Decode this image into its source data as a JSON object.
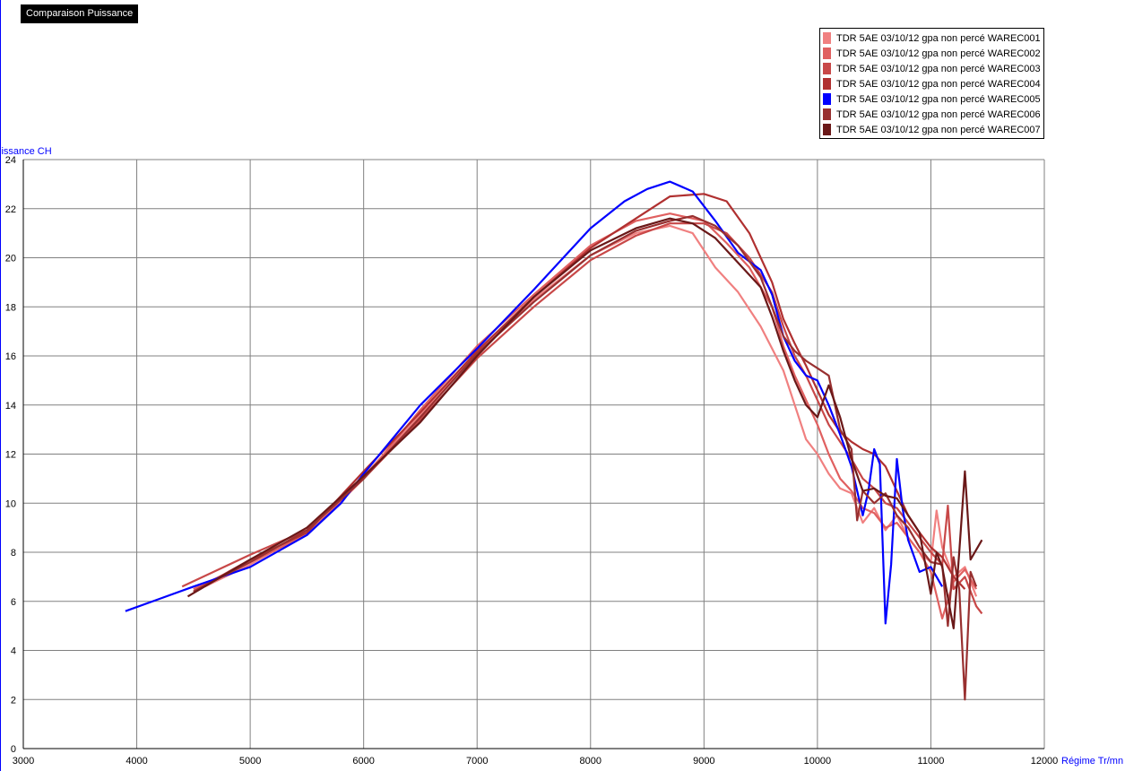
{
  "title": "Comparaison Puissance",
  "chart_data": {
    "type": "line",
    "title": "Comparaison Puissance",
    "xlabel": "Régime Tr/mn",
    "ylabel": "Puissance CH",
    "xlim": [
      3000,
      12000
    ],
    "ylim": [
      0,
      24
    ],
    "xticks": [
      3000,
      4000,
      5000,
      6000,
      7000,
      8000,
      9000,
      10000,
      11000,
      12000
    ],
    "yticks": [
      0,
      2,
      4,
      6,
      8,
      10,
      12,
      14,
      16,
      18,
      20,
      22,
      24
    ],
    "grid": true,
    "legend_position": "top-right",
    "series": [
      {
        "name": "TDR 5AE 03/10/12 gpa non percé WAREC001",
        "color": "#f08080",
        "points": [
          [
            4600,
            6.6
          ],
          [
            5000,
            7.5
          ],
          [
            5500,
            8.8
          ],
          [
            6000,
            11.1
          ],
          [
            6500,
            13.6
          ],
          [
            7000,
            16.1
          ],
          [
            7500,
            18.3
          ],
          [
            8000,
            20.1
          ],
          [
            8400,
            21.0
          ],
          [
            8700,
            21.3
          ],
          [
            8900,
            21.0
          ],
          [
            9100,
            19.6
          ],
          [
            9300,
            18.6
          ],
          [
            9500,
            17.2
          ],
          [
            9700,
            15.4
          ],
          [
            9800,
            14.0
          ],
          [
            9900,
            12.6
          ],
          [
            10000,
            12.0
          ],
          [
            10100,
            11.2
          ],
          [
            10200,
            10.6
          ],
          [
            10300,
            10.4
          ],
          [
            10400,
            9.2
          ],
          [
            10500,
            9.8
          ],
          [
            10600,
            8.9
          ],
          [
            10700,
            9.5
          ],
          [
            10800,
            8.6
          ],
          [
            10900,
            8.0
          ],
          [
            11000,
            7.6
          ],
          [
            11050,
            9.7
          ],
          [
            11100,
            8.2
          ],
          [
            11200,
            7.0
          ],
          [
            11300,
            7.4
          ],
          [
            11400,
            6.2
          ]
        ]
      },
      {
        "name": "TDR 5AE 03/10/12 gpa non percé WAREC002",
        "color": "#e06060",
        "points": [
          [
            4500,
            6.5
          ],
          [
            5000,
            7.6
          ],
          [
            5500,
            8.7
          ],
          [
            6000,
            11.0
          ],
          [
            6500,
            13.8
          ],
          [
            7000,
            16.4
          ],
          [
            7500,
            18.5
          ],
          [
            8000,
            20.5
          ],
          [
            8400,
            21.5
          ],
          [
            8700,
            21.8
          ],
          [
            9000,
            21.5
          ],
          [
            9200,
            20.6
          ],
          [
            9400,
            19.6
          ],
          [
            9600,
            18.0
          ],
          [
            9700,
            16.4
          ],
          [
            9800,
            15.2
          ],
          [
            9900,
            14.2
          ],
          [
            10000,
            13.2
          ],
          [
            10100,
            12.0
          ],
          [
            10200,
            11.0
          ],
          [
            10300,
            10.5
          ],
          [
            10400,
            9.8
          ],
          [
            10500,
            9.6
          ],
          [
            10600,
            9.0
          ],
          [
            10700,
            9.2
          ],
          [
            10800,
            8.6
          ],
          [
            10900,
            8.0
          ],
          [
            11000,
            7.2
          ],
          [
            11100,
            5.3
          ],
          [
            11200,
            6.8
          ],
          [
            11300,
            7.3
          ],
          [
            11400,
            6.5
          ]
        ]
      },
      {
        "name": "TDR 5AE 03/10/12 gpa non percé WAREC003",
        "color": "#c84848",
        "points": [
          [
            4400,
            6.6
          ],
          [
            5000,
            7.9
          ],
          [
            5500,
            8.9
          ],
          [
            6000,
            11.0
          ],
          [
            6500,
            13.4
          ],
          [
            7000,
            15.9
          ],
          [
            7500,
            18.0
          ],
          [
            8000,
            19.9
          ],
          [
            8400,
            20.9
          ],
          [
            8700,
            21.4
          ],
          [
            9000,
            21.4
          ],
          [
            9200,
            21.0
          ],
          [
            9400,
            20.0
          ],
          [
            9600,
            18.6
          ],
          [
            9700,
            17.2
          ],
          [
            9800,
            16.0
          ],
          [
            9900,
            15.2
          ],
          [
            10000,
            14.2
          ],
          [
            10100,
            13.2
          ],
          [
            10200,
            12.5
          ],
          [
            10300,
            11.8
          ],
          [
            10400,
            11.0
          ],
          [
            10500,
            10.6
          ],
          [
            10600,
            10.0
          ],
          [
            10700,
            9.8
          ],
          [
            10800,
            9.2
          ],
          [
            10900,
            8.6
          ],
          [
            11000,
            8.0
          ],
          [
            11100,
            7.5
          ],
          [
            11150,
            9.9
          ],
          [
            11200,
            6.5
          ],
          [
            11300,
            7.0
          ],
          [
            11400,
            5.8
          ],
          [
            11450,
            5.5
          ]
        ]
      },
      {
        "name": "TDR 5AE 03/10/12 gpa non percé WAREC004",
        "color": "#b03030",
        "points": [
          [
            4500,
            6.4
          ],
          [
            5000,
            7.7
          ],
          [
            5500,
            8.8
          ],
          [
            6000,
            11.3
          ],
          [
            6500,
            13.7
          ],
          [
            7000,
            16.2
          ],
          [
            7500,
            18.4
          ],
          [
            8000,
            20.4
          ],
          [
            8400,
            21.6
          ],
          [
            8700,
            22.5
          ],
          [
            9000,
            22.6
          ],
          [
            9200,
            22.3
          ],
          [
            9400,
            21.0
          ],
          [
            9600,
            19.0
          ],
          [
            9700,
            17.5
          ],
          [
            9800,
            16.5
          ],
          [
            9900,
            15.6
          ],
          [
            10000,
            14.6
          ],
          [
            10100,
            13.6
          ],
          [
            10200,
            12.9
          ],
          [
            10300,
            12.5
          ],
          [
            10400,
            12.2
          ],
          [
            10500,
            12.0
          ],
          [
            10600,
            11.5
          ],
          [
            10700,
            10.5
          ],
          [
            10800,
            9.5
          ],
          [
            10900,
            8.8
          ],
          [
            11000,
            8.2
          ],
          [
            11100,
            7.8
          ],
          [
            11200,
            7.0
          ],
          [
            11300,
            6.5
          ]
        ]
      },
      {
        "name": "TDR 5AE 03/10/12 gpa non percé WAREC005",
        "color": "#0000ff",
        "points": [
          [
            3900,
            5.6
          ],
          [
            4200,
            6.1
          ],
          [
            4500,
            6.6
          ],
          [
            5000,
            7.4
          ],
          [
            5500,
            8.7
          ],
          [
            5800,
            10.0
          ],
          [
            6000,
            11.2
          ],
          [
            6500,
            14.0
          ],
          [
            7000,
            16.3
          ],
          [
            7500,
            18.7
          ],
          [
            8000,
            21.2
          ],
          [
            8300,
            22.3
          ],
          [
            8500,
            22.8
          ],
          [
            8700,
            23.1
          ],
          [
            8900,
            22.7
          ],
          [
            9100,
            21.5
          ],
          [
            9300,
            20.2
          ],
          [
            9500,
            19.5
          ],
          [
            9600,
            18.5
          ],
          [
            9700,
            16.8
          ],
          [
            9800,
            15.8
          ],
          [
            9900,
            15.2
          ],
          [
            10000,
            15.0
          ],
          [
            10100,
            14.0
          ],
          [
            10200,
            12.8
          ],
          [
            10300,
            11.5
          ],
          [
            10400,
            9.5
          ],
          [
            10450,
            10.5
          ],
          [
            10500,
            12.2
          ],
          [
            10550,
            11.6
          ],
          [
            10600,
            5.1
          ],
          [
            10650,
            7.5
          ],
          [
            10700,
            11.8
          ],
          [
            10750,
            9.8
          ],
          [
            10800,
            8.5
          ],
          [
            10900,
            7.2
          ],
          [
            11000,
            7.4
          ],
          [
            11100,
            6.6
          ]
        ]
      },
      {
        "name": "TDR 5AE 03/10/12 gpa non percé WAREC006",
        "color": "#983030",
        "points": [
          [
            4500,
            6.4
          ],
          [
            5000,
            7.6
          ],
          [
            5500,
            8.9
          ],
          [
            6000,
            11.0
          ],
          [
            6500,
            13.5
          ],
          [
            7000,
            16.1
          ],
          [
            7500,
            18.2
          ],
          [
            8000,
            20.1
          ],
          [
            8400,
            21.1
          ],
          [
            8700,
            21.5
          ],
          [
            8900,
            21.7
          ],
          [
            9100,
            21.3
          ],
          [
            9300,
            20.5
          ],
          [
            9500,
            19.2
          ],
          [
            9600,
            18.0
          ],
          [
            9700,
            16.8
          ],
          [
            9800,
            16.2
          ],
          [
            9900,
            15.8
          ],
          [
            10000,
            15.5
          ],
          [
            10100,
            15.2
          ],
          [
            10200,
            13.0
          ],
          [
            10300,
            12.2
          ],
          [
            10350,
            9.3
          ],
          [
            10400,
            10.5
          ],
          [
            10500,
            10.0
          ],
          [
            10600,
            10.4
          ],
          [
            10700,
            9.5
          ],
          [
            10800,
            9.0
          ],
          [
            10900,
            8.2
          ],
          [
            11000,
            7.6
          ],
          [
            11100,
            7.5
          ],
          [
            11150,
            5.0
          ],
          [
            11200,
            7.8
          ],
          [
            11250,
            6.5
          ],
          [
            11300,
            2.0
          ],
          [
            11350,
            7.2
          ],
          [
            11400,
            6.6
          ]
        ]
      },
      {
        "name": "TDR 5AE 03/10/12 gpa non percé WAREC007",
        "color": "#6a1818",
        "points": [
          [
            4450,
            6.2
          ],
          [
            5000,
            7.7
          ],
          [
            5500,
            9.0
          ],
          [
            6000,
            11.1
          ],
          [
            6500,
            13.3
          ],
          [
            7000,
            16.0
          ],
          [
            7500,
            18.4
          ],
          [
            8000,
            20.3
          ],
          [
            8400,
            21.2
          ],
          [
            8700,
            21.6
          ],
          [
            8900,
            21.4
          ],
          [
            9100,
            20.8
          ],
          [
            9300,
            19.8
          ],
          [
            9500,
            18.8
          ],
          [
            9600,
            17.6
          ],
          [
            9700,
            16.2
          ],
          [
            9800,
            15.0
          ],
          [
            9900,
            14.0
          ],
          [
            10000,
            13.5
          ],
          [
            10100,
            14.8
          ],
          [
            10200,
            13.5
          ],
          [
            10300,
            11.8
          ],
          [
            10400,
            10.5
          ],
          [
            10500,
            10.6
          ],
          [
            10600,
            10.3
          ],
          [
            10700,
            10.2
          ],
          [
            10800,
            9.5
          ],
          [
            10900,
            8.8
          ],
          [
            11000,
            6.3
          ],
          [
            11050,
            8.0
          ],
          [
            11100,
            7.4
          ],
          [
            11200,
            4.9
          ],
          [
            11250,
            8.0
          ],
          [
            11300,
            11.3
          ],
          [
            11350,
            7.7
          ],
          [
            11450,
            8.5
          ]
        ]
      }
    ]
  }
}
